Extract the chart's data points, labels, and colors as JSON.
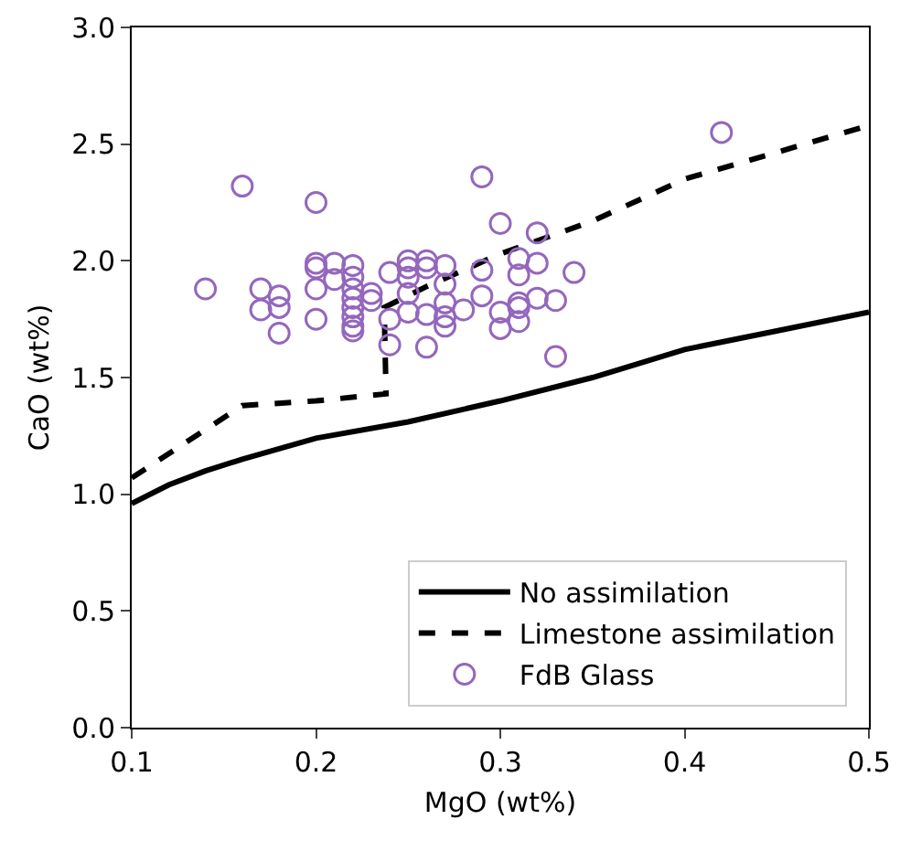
{
  "chart_data": {
    "type": "scatter",
    "xlabel": "MgO (wt%)",
    "ylabel": "CaO (wt%)",
    "xlim": [
      0.1,
      0.5
    ],
    "ylim": [
      0,
      3.0
    ],
    "xticks": [
      0.1,
      0.2,
      0.3,
      0.4,
      0.5
    ],
    "yticks": [
      {
        "value": 0,
        "label": "0.0"
      },
      0.5,
      {
        "value": 1,
        "label": "1.0"
      },
      1.5,
      {
        "value": 2,
        "label": "2.0"
      },
      2.5,
      {
        "value": 3,
        "label": "3.0"
      }
    ],
    "grid": false,
    "legend": "bottom right",
    "series": [
      {
        "name": "No assimilation",
        "type": "line",
        "line_style": "solid",
        "marker": "none",
        "color": "#000000",
        "x": [
          0.1,
          0.12,
          0.14,
          0.16,
          0.2,
          0.25,
          0.3,
          0.35,
          0.4,
          0.45,
          0.5
        ],
        "values": [
          0.96,
          1.04,
          1.1,
          1.15,
          1.24,
          1.31,
          1.4,
          1.5,
          1.62,
          1.7,
          1.78
        ]
      },
      {
        "name": "Limestone assimilation",
        "type": "line",
        "line_style": "dashed",
        "marker": "none",
        "color": "#000000",
        "x": [
          0.1,
          0.16,
          0.2,
          0.238,
          0.237,
          0.26,
          0.3,
          0.35,
          0.4,
          0.5
        ],
        "values": [
          1.07,
          1.38,
          1.4,
          1.43,
          1.8,
          1.89,
          2.03,
          2.17,
          2.35,
          2.58
        ]
      },
      {
        "name": "FdB Glass",
        "marker": "circle",
        "color": "#9467bd",
        "x": [
          0.14,
          0.16,
          0.2,
          0.29,
          0.42,
          0.3,
          0.32,
          0.31,
          0.32,
          0.34,
          0.31,
          0.29,
          0.29,
          0.32,
          0.33,
          0.31,
          0.31,
          0.3,
          0.3,
          0.31,
          0.33,
          0.28,
          0.27,
          0.27,
          0.27,
          0.27,
          0.27,
          0.26,
          0.26,
          0.26,
          0.26,
          0.25,
          0.25,
          0.25,
          0.25,
          0.25,
          0.24,
          0.24,
          0.24,
          0.23,
          0.23,
          0.22,
          0.22,
          0.22,
          0.22,
          0.22,
          0.22,
          0.22,
          0.22,
          0.21,
          0.21,
          0.2,
          0.2,
          0.2,
          0.2,
          0.18,
          0.18,
          0.18,
          0.17,
          0.17
        ],
        "values": [
          1.88,
          2.32,
          2.25,
          2.36,
          2.55,
          2.16,
          2.12,
          2.01,
          1.99,
          1.95,
          1.94,
          1.96,
          1.85,
          1.84,
          1.83,
          1.82,
          1.8,
          1.78,
          1.71,
          1.74,
          1.59,
          1.79,
          1.9,
          1.98,
          1.82,
          1.76,
          1.72,
          2.0,
          1.97,
          1.77,
          1.63,
          2.0,
          1.97,
          1.93,
          1.86,
          1.78,
          1.95,
          1.75,
          1.64,
          1.86,
          1.83,
          1.98,
          1.93,
          1.88,
          1.84,
          1.8,
          1.76,
          1.72,
          1.7,
          1.99,
          1.92,
          1.99,
          1.97,
          1.88,
          1.75,
          1.85,
          1.8,
          1.69,
          1.88,
          1.79
        ]
      }
    ]
  }
}
